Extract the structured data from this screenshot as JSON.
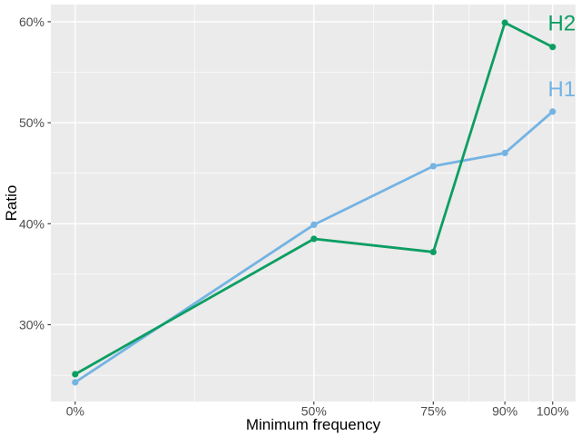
{
  "chart_data": {
    "type": "line",
    "title": "",
    "xlabel": "Minimum frequency",
    "ylabel": "Ratio",
    "x": [
      0,
      50,
      75,
      90,
      100
    ],
    "x_tick_labels": [
      "0%",
      "50%",
      "75%",
      "90%",
      "100%"
    ],
    "y_tick_values": [
      30,
      40,
      50,
      60
    ],
    "y_tick_labels": [
      "30%",
      "40%",
      "50%",
      "60%"
    ],
    "x_minor_ticks": [
      25,
      62.5,
      82.5,
      95
    ],
    "y_minor_ticks": [
      25,
      35,
      45,
      55
    ],
    "xlim": [
      -5.1,
      104.8
    ],
    "ylim": [
      22.4,
      61.7
    ],
    "grid": true,
    "legend_position": "direct-labels-right",
    "series": [
      {
        "name": "H1",
        "color": "#74B3E3",
        "values": [
          24.3,
          39.9,
          45.7,
          47.0,
          51.1
        ],
        "label_pos": {
          "x": 99,
          "y": 53.3
        }
      },
      {
        "name": "H2",
        "color": "#0D9E63",
        "values": [
          25.1,
          38.5,
          37.2,
          59.9,
          57.5
        ],
        "label_pos": {
          "x": 99,
          "y": 59.8
        }
      }
    ]
  },
  "style": {
    "panel_bg": "#EBEBEB",
    "grid_major_color": "#FFFFFF",
    "grid_minor_color": "#FFFFFF",
    "tick_label_color": "#4D4D4D",
    "tick_mark_color": "#333333",
    "axis_title_color": "#000000"
  }
}
